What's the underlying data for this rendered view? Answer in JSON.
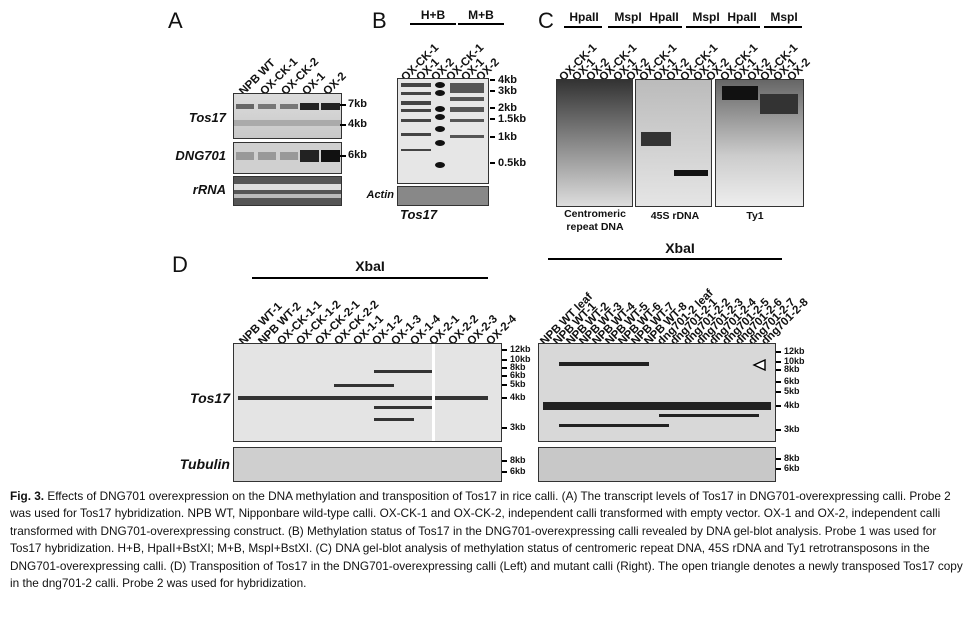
{
  "panels": {
    "A": {
      "label": "A",
      "lanes": [
        "NPB WT",
        "OX-CK-1",
        "OX-CK-2",
        "OX-1",
        "OX-2"
      ],
      "rows": [
        "Tos17",
        "DNG701",
        "rRNA"
      ],
      "markers_tos17": [
        "7kb",
        "4kb"
      ],
      "markers_dng": [
        "6kb"
      ]
    },
    "B": {
      "label": "B",
      "groups": [
        "H+B",
        "M+B"
      ],
      "lanes": [
        "OX-CK-1",
        "OX-1",
        "OX-2",
        "OX-CK-1",
        "OX-1",
        "OX-2"
      ],
      "markers": [
        "4kb",
        "3kb",
        "2kb",
        "1.5kb",
        "1kb",
        "0.5kb"
      ],
      "actin": "Actin",
      "probe": "Tos17"
    },
    "C": {
      "label": "C",
      "groups": [
        "HpaII",
        "MspI",
        "HpaII",
        "MspI",
        "HpaII",
        "MspI"
      ],
      "lanes": [
        "OX-CK-1",
        "OX-1",
        "OX-2",
        "OX-CK-1",
        "OX-1",
        "OX-2",
        "OX-CK-1",
        "OX-1",
        "OX-2",
        "OX-CK-1",
        "OX-1",
        "OX-2",
        "OX-CK-1",
        "OX-1",
        "OX-2",
        "OX-CK-1",
        "OX-1",
        "OX-2"
      ],
      "captions": [
        "Centromeric repeat DNA",
        "45S rDNA",
        "Ty1"
      ]
    },
    "D": {
      "label": "D",
      "left_header": "XbaI",
      "right_header": "XbaI",
      "left_lanes": [
        "NPB WT-1",
        "NPB WT-2",
        "OX-CK-1-1",
        "OX-CK-1-2",
        "OX-CK-2-1",
        "OX-CK-2-2",
        "OX-1-1",
        "OX-1-2",
        "OX-1-3",
        "OX-1-4",
        "OX-2-1",
        "OX-2-2",
        "OX-2-3",
        "OX-2-4"
      ],
      "right_lanes": [
        "NPB WT leaf",
        "NPB WT-1",
        "NPB WT-2",
        "NPB WT-3",
        "NPB WT-4",
        "NPB WT-5",
        "NPB WT-6",
        "NPB WT-7",
        "NPB WT-8",
        "dng701-2 leaf",
        "dng701-2-1",
        "dng701-2-2",
        "dng701-2-3",
        "dng701-2-4",
        "dng701-2-5",
        "dng701-2-6",
        "dng701-2-7",
        "dng701-2-8"
      ],
      "rows": [
        "Tos17",
        "Tubulin"
      ],
      "markers": [
        "12kb",
        "10kb",
        "8kb",
        "6kb",
        "5kb",
        "4kb",
        "3kb"
      ],
      "tub_markers": [
        "8kb",
        "6kb"
      ]
    }
  },
  "caption": {
    "figure": "Fig. 3.",
    "text": "Effects of DNG701 overexpression on the DNA methylation and transposition of Tos17 in rice calli. (A) The transcript levels of Tos17 in DNG701-overexpressing calli. Probe 2 was used for Tos17 hybridization. NPB WT, Nipponbare wild-type calli. OX-CK-1 and OX-CK-2, independent calli transformed with empty vector. OX-1 and OX-2, independent calli transformed with DNG701-overexpressing construct. (B) Methylation status of Tos17 in the DNG701-overexpressing calli revealed by DNA gel-blot analysis. Probe 1 was used for Tos17 hybridization. H+B, HpaII+BstXI; M+B, MspI+BstXI. (C) DNA gel-blot analysis of methylation status of centromeric repeat DNA, 45S rDNA and Ty1 retrotransposons in the DNG701-overexpressing calli. (D) Transposition of Tos17 in the DNG701-overexpressing calli (Left) and mutant calli (Right). The open triangle denotes a newly transposed Tos17 copy in the dng701-2 calli. Probe 2 was used for hybridization."
  }
}
